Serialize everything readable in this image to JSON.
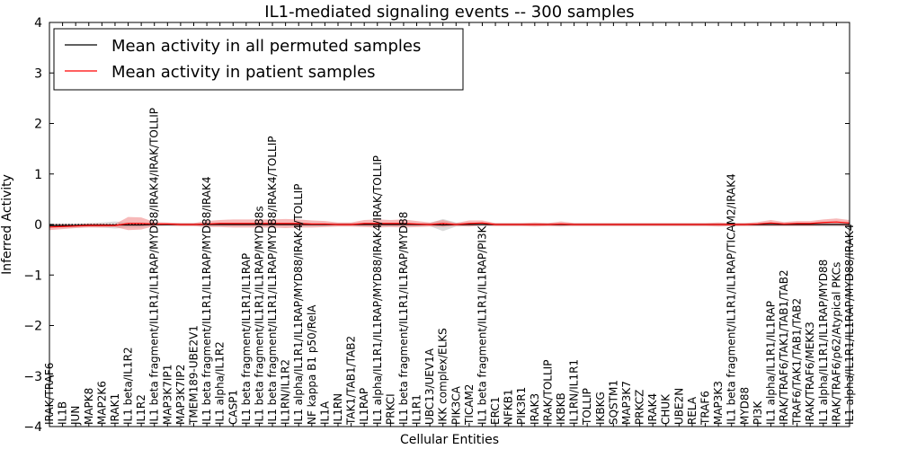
{
  "chart_data": {
    "type": "line",
    "title": "IL1-mediated signaling events -- 300 samples",
    "xlabel": "Cellular Entities",
    "ylabel": "Inferred Activity",
    "ylim": [
      -4,
      4
    ],
    "yticks": [
      -4,
      -3,
      -2,
      -1,
      0,
      1,
      2,
      3,
      4
    ],
    "yticklabels": [
      "−4",
      "−3",
      "−2",
      "−1",
      "0",
      "1",
      "2",
      "3",
      "4"
    ],
    "categories": [
      "IRAK/TRAF6",
      "IL1B",
      "JUN",
      "MAPK8",
      "MAP2K6",
      "IRAK1",
      "IL1 beta/IL1R2",
      "IL1R2",
      "IL1 beta fragment/IL1R1/IL1RAP/MYD88/IRAK4/IRAK/TOLLIP",
      "MAP3K7IP1",
      "MAP3K7IP2",
      "TMEM189-UBE2V1",
      "IL1 beta fragment/IL1R1/IL1RAP/MYD88/IRAK4",
      "IL1 alpha/IL1R2",
      "CASP1",
      "IL1 beta fragment/IL1R1/IL1RAP",
      "IL1 beta fragment/IL1R1/IL1RAP/MYD88s",
      "IL1 beta fragment/IL1R1/IL1RAP/MYD88/IRAK4/TOLLIP",
      "IL1RN/IL1R2",
      "IL1 alpha/IL1R1/IL1RAP/MYD88/IRAK4/TOLLIP",
      "NF kappa B1 p50/RelA",
      "IL1A",
      "IL1RN",
      "TAK1/TAB1/TAB2",
      "IL1RAP",
      "IL1 alpha/IL1R1/IL1RAP/MYD88/IRAK4/IRAK/TOLLIP",
      "PRKCI",
      "IL1 beta fragment/IL1R1/IL1RAP/MYD88",
      "IL1R1",
      "UBC13/UEV1A",
      "IKK complex/ELKS",
      "PIK3CA",
      "TICAM2",
      "IL1 beta fragment/IL1R1/IL1RAP/PI3K",
      "ERC1",
      "NFKB1",
      "PIK3R1",
      "IRAK3",
      "IRAK/TOLLIP",
      "IKBKB",
      "IL1RN/IL1R1",
      "TOLLIP",
      "IKBKG",
      "SQSTM1",
      "MAP3K7",
      "PRKCZ",
      "IRAK4",
      "CHUK",
      "UBE2N",
      "RELA",
      "TRAF6",
      "MAP3K3",
      "IL1 beta fragment/IL1R1/IL1RAP/TICAM2/IRAK4",
      "MYD88",
      "PI3K",
      "IL1 alpha/IL1R1/IL1RAP",
      "IRAK/TRAF6/TAK1/TAB1/TAB2",
      "TRAF6/TAK1/TAB1/TAB2",
      "IRAK/TRAF6/MEKK3",
      "IL1 alpha/IL1R1/IL1RAP/MYD88",
      "IRAK/TRAF6/p62/Atypical PKCs",
      "IL1 alpha/IL1R1/IL1RAP/MYD88/IRAK4"
    ],
    "series": [
      {
        "name": "Mean activity in all permuted samples",
        "color": "#000000",
        "band_color": "#b0b0b0",
        "values": [
          -0.02,
          -0.02,
          -0.02,
          -0.01,
          -0.01,
          -0.01,
          -0.01,
          -0.01,
          0.0,
          0.0,
          0.0,
          0.0,
          0.0,
          0.0,
          0.0,
          0.0,
          0.0,
          0.0,
          0.0,
          0.0,
          0.0,
          0.0,
          0.0,
          0.0,
          0.0,
          0.0,
          0.0,
          0.0,
          0.0,
          0.0,
          -0.01,
          0.0,
          0.0,
          0.0,
          0.0,
          0.0,
          0.0,
          0.0,
          0.0,
          0.0,
          0.0,
          0.0,
          0.0,
          0.0,
          0.0,
          0.0,
          0.0,
          0.0,
          0.0,
          0.0,
          0.0,
          0.0,
          0.0,
          0.0,
          0.0,
          0.0,
          0.0,
          0.0,
          0.0,
          0.0,
          0.0,
          0.0
        ],
        "spread": [
          0.04,
          0.04,
          0.04,
          0.04,
          0.05,
          0.07,
          0.05,
          0.05,
          0.03,
          0.03,
          0.03,
          0.03,
          0.03,
          0.03,
          0.03,
          0.03,
          0.03,
          0.03,
          0.03,
          0.03,
          0.03,
          0.03,
          0.03,
          0.03,
          0.03,
          0.03,
          0.03,
          0.03,
          0.03,
          0.03,
          0.12,
          0.04,
          0.03,
          0.03,
          0.03,
          0.03,
          0.03,
          0.03,
          0.03,
          0.03,
          0.03,
          0.03,
          0.03,
          0.03,
          0.03,
          0.03,
          0.03,
          0.03,
          0.03,
          0.03,
          0.03,
          0.03,
          0.03,
          0.03,
          0.03,
          0.03,
          0.03,
          0.03,
          0.03,
          0.04,
          0.04,
          0.04
        ]
      },
      {
        "name": "Mean activity in patient samples",
        "color": "#ff0000",
        "band_color": "#f08080",
        "values": [
          -0.05,
          -0.04,
          -0.03,
          -0.02,
          -0.02,
          -0.02,
          0.02,
          0.02,
          0.01,
          0.01,
          0.0,
          0.0,
          0.01,
          0.02,
          0.02,
          0.02,
          0.02,
          0.02,
          0.02,
          0.02,
          0.01,
          0.01,
          0.0,
          0.0,
          0.02,
          0.02,
          0.02,
          0.02,
          0.01,
          0.0,
          0.02,
          0.0,
          0.02,
          0.03,
          0.0,
          0.0,
          0.0,
          0.0,
          0.0,
          0.01,
          0.0,
          0.0,
          0.0,
          0.0,
          0.0,
          0.0,
          0.0,
          0.0,
          0.0,
          0.0,
          0.0,
          0.0,
          0.0,
          0.0,
          0.01,
          0.03,
          0.01,
          0.02,
          0.02,
          0.04,
          0.05,
          0.03
        ],
        "spread": [
          0.06,
          0.05,
          0.04,
          0.04,
          0.04,
          0.03,
          0.13,
          0.12,
          0.04,
          0.03,
          0.03,
          0.03,
          0.06,
          0.07,
          0.08,
          0.08,
          0.08,
          0.08,
          0.09,
          0.08,
          0.07,
          0.06,
          0.04,
          0.04,
          0.07,
          0.08,
          0.07,
          0.08,
          0.06,
          0.04,
          0.07,
          0.03,
          0.06,
          0.05,
          0.03,
          0.03,
          0.03,
          0.04,
          0.03,
          0.05,
          0.03,
          0.03,
          0.03,
          0.03,
          0.03,
          0.03,
          0.03,
          0.03,
          0.03,
          0.03,
          0.03,
          0.04,
          0.03,
          0.03,
          0.04,
          0.06,
          0.04,
          0.05,
          0.05,
          0.06,
          0.07,
          0.06
        ]
      }
    ],
    "legend": {
      "position": "top-left",
      "entries": [
        "Mean activity in all permuted samples",
        "Mean activity in patient samples"
      ]
    },
    "grid": false
  }
}
